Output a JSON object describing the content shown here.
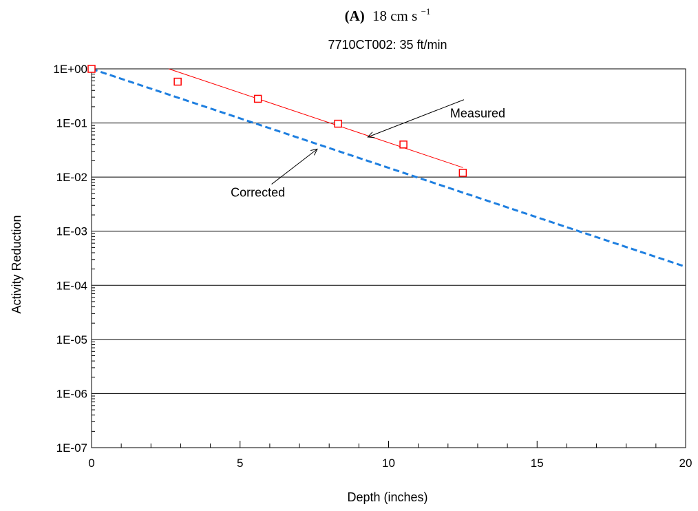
{
  "panel_label": {
    "letter": "(A)",
    "speed": "18 cm s",
    "exponent": "−1"
  },
  "chart_data": {
    "type": "scatter",
    "title": "7710CT002:  35 ft/min",
    "xlabel": "Depth (inches)",
    "ylabel": "Activity Reduction",
    "xlim": [
      0,
      20
    ],
    "ylim": [
      1e-07,
      1
    ],
    "yscale": "log",
    "grid": "horizontal major",
    "x_ticks": [
      0,
      5,
      10,
      15,
      20
    ],
    "x_tick_labels": [
      "0",
      "5",
      "10",
      "15",
      "20"
    ],
    "y_ticks": [
      1e-07,
      1e-06,
      1e-05,
      0.0001,
      0.001,
      0.01,
      0.1,
      1
    ],
    "y_tick_labels": [
      "1E-07",
      "1E-06",
      "1E-05",
      "1E-04",
      "1E-03",
      "1E-02",
      "1E-01",
      "1E+00"
    ],
    "measured_points": {
      "x": [
        0,
        2.9,
        5.6,
        8.3,
        10.5,
        12.5
      ],
      "y": [
        1.0,
        0.58,
        0.28,
        0.097,
        0.04,
        0.012
      ]
    },
    "measured_fit": {
      "x": [
        2.6,
        12.5
      ],
      "y": [
        1.0,
        0.015
      ],
      "color": "#ff0000"
    },
    "corrected_line": {
      "x": [
        0,
        20
      ],
      "y": [
        1.0,
        0.00022
      ],
      "color": "#1e7fe0"
    },
    "marker_color": "#ff0000",
    "annotations": [
      {
        "text": "Measured",
        "text_x": 13.0,
        "text_y": 0.15,
        "arrow_x": 9.3,
        "arrow_y": 0.055
      },
      {
        "text": "Corrected",
        "text_x": 5.6,
        "text_y": 0.0052,
        "arrow_x": 7.6,
        "arrow_y": 0.033
      }
    ]
  }
}
